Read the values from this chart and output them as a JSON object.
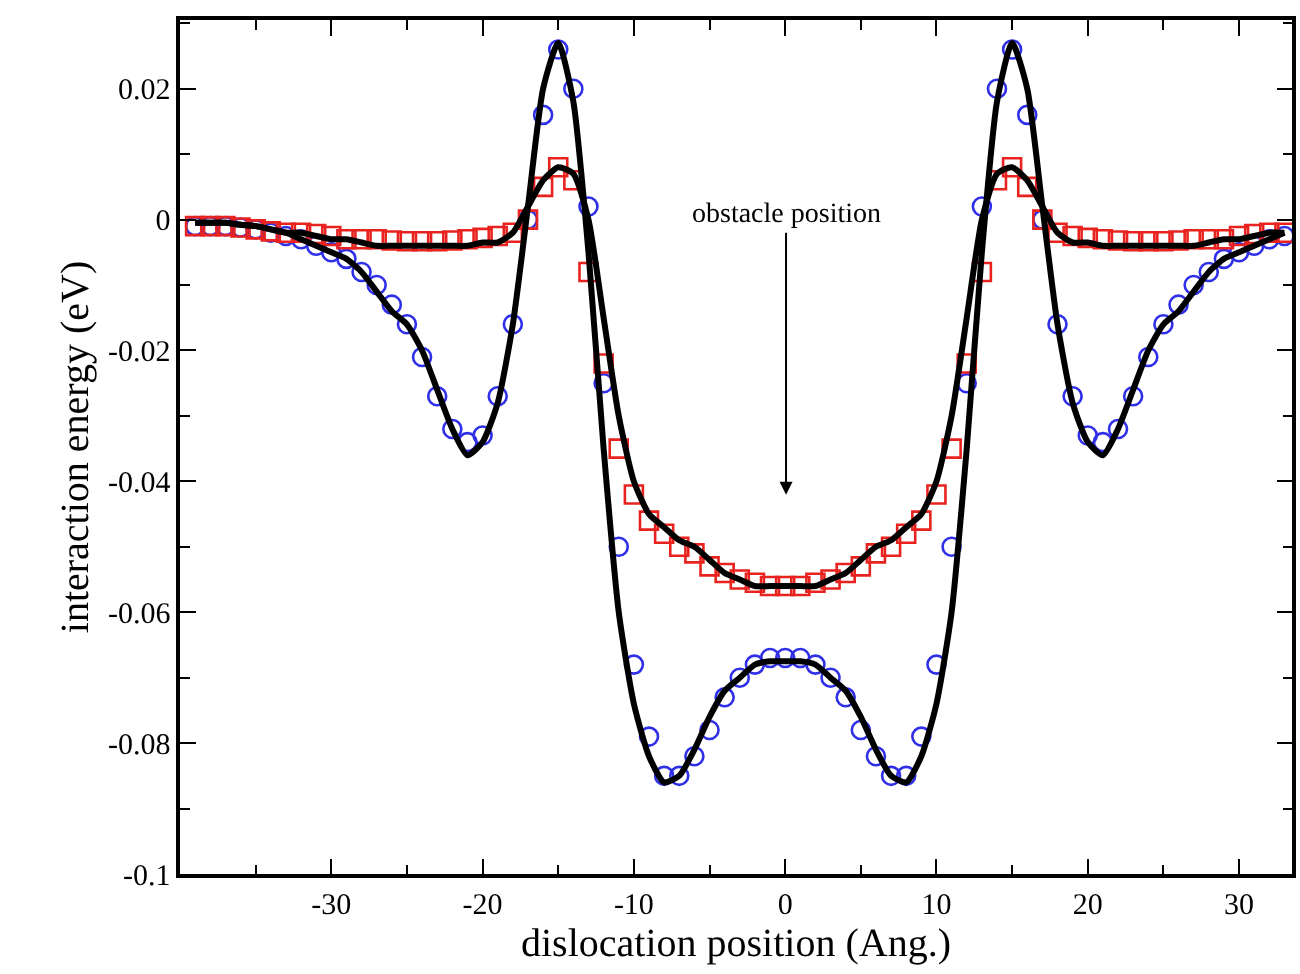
{
  "chart_data": {
    "type": "scatter",
    "xlabel": "dislocation position (Ang.)",
    "ylabel": "interaction energy (eV)",
    "x": [
      -39,
      -38,
      -37,
      -36,
      -35,
      -34,
      -33,
      -32,
      -31,
      -30,
      -29,
      -28,
      -27,
      -26,
      -25,
      -24,
      -23,
      -22,
      -21,
      -20,
      -19,
      -18,
      -17,
      -16,
      -15,
      -14,
      -13,
      -12,
      -11,
      -10,
      -9,
      -8,
      -7,
      -6,
      -5,
      -4,
      -3,
      -2,
      -1,
      0,
      1,
      2,
      3,
      4,
      5,
      6,
      7,
      8,
      9,
      10,
      11,
      12,
      13,
      14,
      15,
      16,
      17,
      18,
      19,
      20,
      21,
      22,
      23,
      24,
      25,
      26,
      27,
      28,
      29,
      30,
      31,
      32,
      33
    ],
    "series": [
      {
        "marker": "circle",
        "color": "#2f2fe8",
        "values": [
          -0.001,
          -0.001,
          -0.001,
          -0.0012,
          -0.0015,
          -0.002,
          -0.0025,
          -0.003,
          -0.004,
          -0.005,
          -0.006,
          -0.008,
          -0.01,
          -0.013,
          -0.016,
          -0.021,
          -0.027,
          -0.032,
          -0.034,
          -0.033,
          -0.027,
          -0.016,
          0.0,
          0.016,
          0.026,
          0.02,
          0.002,
          -0.025,
          -0.05,
          -0.068,
          -0.079,
          -0.085,
          -0.085,
          -0.082,
          -0.078,
          -0.073,
          -0.07,
          -0.068,
          -0.067,
          -0.067,
          -0.067,
          -0.068,
          -0.07,
          -0.073,
          -0.078,
          -0.082,
          -0.085,
          -0.085,
          -0.079,
          -0.068,
          -0.05,
          -0.025,
          0.002,
          0.02,
          0.026,
          0.016,
          0.0,
          -0.016,
          -0.027,
          -0.033,
          -0.034,
          -0.032,
          -0.027,
          -0.021,
          -0.016,
          -0.013,
          -0.01,
          -0.008,
          -0.006,
          -0.005,
          -0.004,
          -0.003,
          -0.0025
        ]
      },
      {
        "marker": "square",
        "color": "#e8231f",
        "values": [
          -0.001,
          -0.001,
          -0.001,
          -0.0012,
          -0.0015,
          -0.0018,
          -0.002,
          -0.002,
          -0.0022,
          -0.0025,
          -0.003,
          -0.003,
          -0.003,
          -0.0032,
          -0.0033,
          -0.0033,
          -0.0033,
          -0.0032,
          -0.003,
          -0.0028,
          -0.0025,
          -0.002,
          0.0,
          0.005,
          0.008,
          0.006,
          -0.008,
          -0.022,
          -0.035,
          -0.042,
          -0.046,
          -0.048,
          -0.05,
          -0.051,
          -0.053,
          -0.054,
          -0.055,
          -0.0555,
          -0.056,
          -0.056,
          -0.056,
          -0.0555,
          -0.055,
          -0.054,
          -0.053,
          -0.051,
          -0.05,
          -0.048,
          -0.046,
          -0.042,
          -0.035,
          -0.022,
          -0.008,
          0.006,
          0.008,
          0.005,
          0.0,
          -0.002,
          -0.0025,
          -0.0028,
          -0.003,
          -0.0032,
          -0.0033,
          -0.0033,
          -0.0033,
          -0.0032,
          -0.003,
          -0.003,
          -0.003,
          -0.0025,
          -0.0022,
          -0.002,
          -0.002
        ]
      },
      {
        "type": "line",
        "color": "#000000",
        "values": [
          -0.0005,
          -0.0005,
          -0.0005,
          -0.0008,
          -0.001,
          -0.0015,
          -0.002,
          -0.003,
          -0.004,
          -0.005,
          -0.006,
          -0.008,
          -0.011,
          -0.014,
          -0.016,
          -0.02,
          -0.026,
          -0.032,
          -0.036,
          -0.034,
          -0.028,
          -0.016,
          0.002,
          0.02,
          0.027,
          0.018,
          -0.005,
          -0.035,
          -0.06,
          -0.074,
          -0.082,
          -0.086,
          -0.085,
          -0.081,
          -0.076,
          -0.072,
          -0.07,
          -0.068,
          -0.0675,
          -0.0675,
          -0.0675,
          -0.068,
          -0.07,
          -0.072,
          -0.076,
          -0.081,
          -0.085,
          -0.086,
          -0.082,
          -0.074,
          -0.06,
          -0.035,
          -0.005,
          0.018,
          0.027,
          0.02,
          0.002,
          -0.016,
          -0.028,
          -0.034,
          -0.036,
          -0.032,
          -0.026,
          -0.02,
          -0.016,
          -0.014,
          -0.011,
          -0.008,
          -0.006,
          -0.005,
          -0.004,
          -0.003,
          -0.002
        ]
      },
      {
        "type": "line",
        "color": "#000000",
        "values": [
          -0.0005,
          -0.0005,
          -0.0005,
          -0.0008,
          -0.001,
          -0.0015,
          -0.002,
          -0.002,
          -0.0025,
          -0.003,
          -0.003,
          -0.0035,
          -0.004,
          -0.004,
          -0.004,
          -0.004,
          -0.004,
          -0.004,
          -0.004,
          -0.0035,
          -0.0035,
          -0.002,
          0.002,
          0.006,
          0.008,
          0.007,
          0.0,
          -0.015,
          -0.03,
          -0.04,
          -0.045,
          -0.047,
          -0.049,
          -0.05,
          -0.052,
          -0.054,
          -0.055,
          -0.056,
          -0.056,
          -0.056,
          -0.056,
          -0.056,
          -0.055,
          -0.054,
          -0.052,
          -0.05,
          -0.049,
          -0.047,
          -0.045,
          -0.04,
          -0.03,
          -0.015,
          0.0,
          0.007,
          0.008,
          0.006,
          0.002,
          -0.002,
          -0.0035,
          -0.0035,
          -0.004,
          -0.004,
          -0.004,
          -0.004,
          -0.004,
          -0.004,
          -0.004,
          -0.0035,
          -0.003,
          -0.003,
          -0.0025,
          -0.002,
          -0.002
        ]
      }
    ],
    "annotations": [
      "obstacle position"
    ],
    "xlim": [
      -40,
      33.5
    ],
    "xticks": [
      -30,
      -20,
      -10,
      0,
      10,
      20,
      30
    ],
    "ylim": [
      -0.1,
      0.0305
    ],
    "yticks": [
      -0.1,
      -0.08,
      -0.06,
      -0.04,
      -0.02,
      0,
      0.02
    ]
  }
}
